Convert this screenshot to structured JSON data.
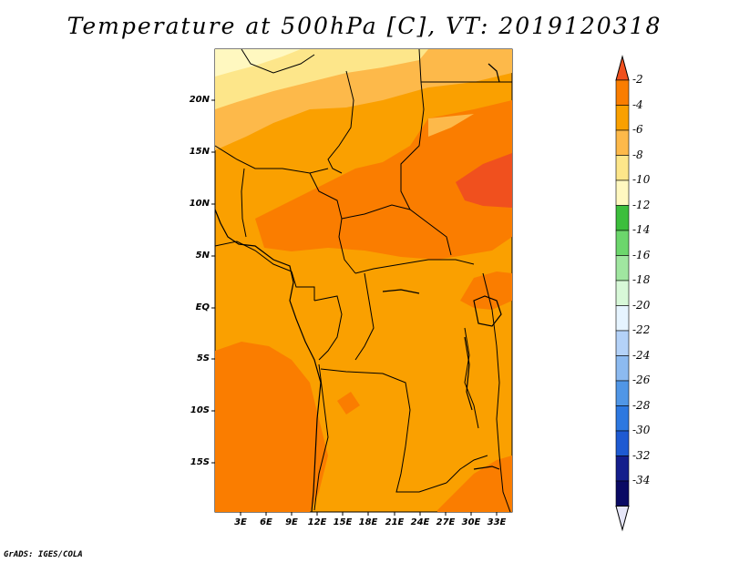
{
  "map": {
    "title": "Temperature at 500hPa [C], VT: 2019120318",
    "credit": "GrADS: IGES/COLA",
    "lat_labels": [
      "20N",
      "15N",
      "10N",
      "5N",
      "EQ",
      "5S",
      "10S",
      "15S"
    ],
    "lon_labels": [
      "3E",
      "6E",
      "9E",
      "12E",
      "15E",
      "18E",
      "21E",
      "24E",
      "27E",
      "30E",
      "33E"
    ],
    "colorbar": {
      "labels": [
        "-2",
        "-4",
        "-6",
        "-8",
        "-10",
        "-12",
        "-14",
        "-16",
        "-18",
        "-20",
        "-22",
        "-24",
        "-26",
        "-28",
        "-30",
        "-32",
        "-34"
      ],
      "colors": [
        "#f0501e",
        "#fa7d00",
        "#faa000",
        "#fdb94a",
        "#fde68a",
        "#fff8c0",
        "#3cbe3c",
        "#6cd66c",
        "#a0e6a0",
        "#d8f8d8",
        "#e6f4ff",
        "#b4d2f8",
        "#8cbaf0",
        "#5096e6",
        "#2d78e0",
        "#1e5ad2",
        "#141e8c",
        "#0a0a64"
      ],
      "top_arrow_color": "#f0501e",
      "bottom_arrow_color": "#e6e6f8"
    }
  }
}
